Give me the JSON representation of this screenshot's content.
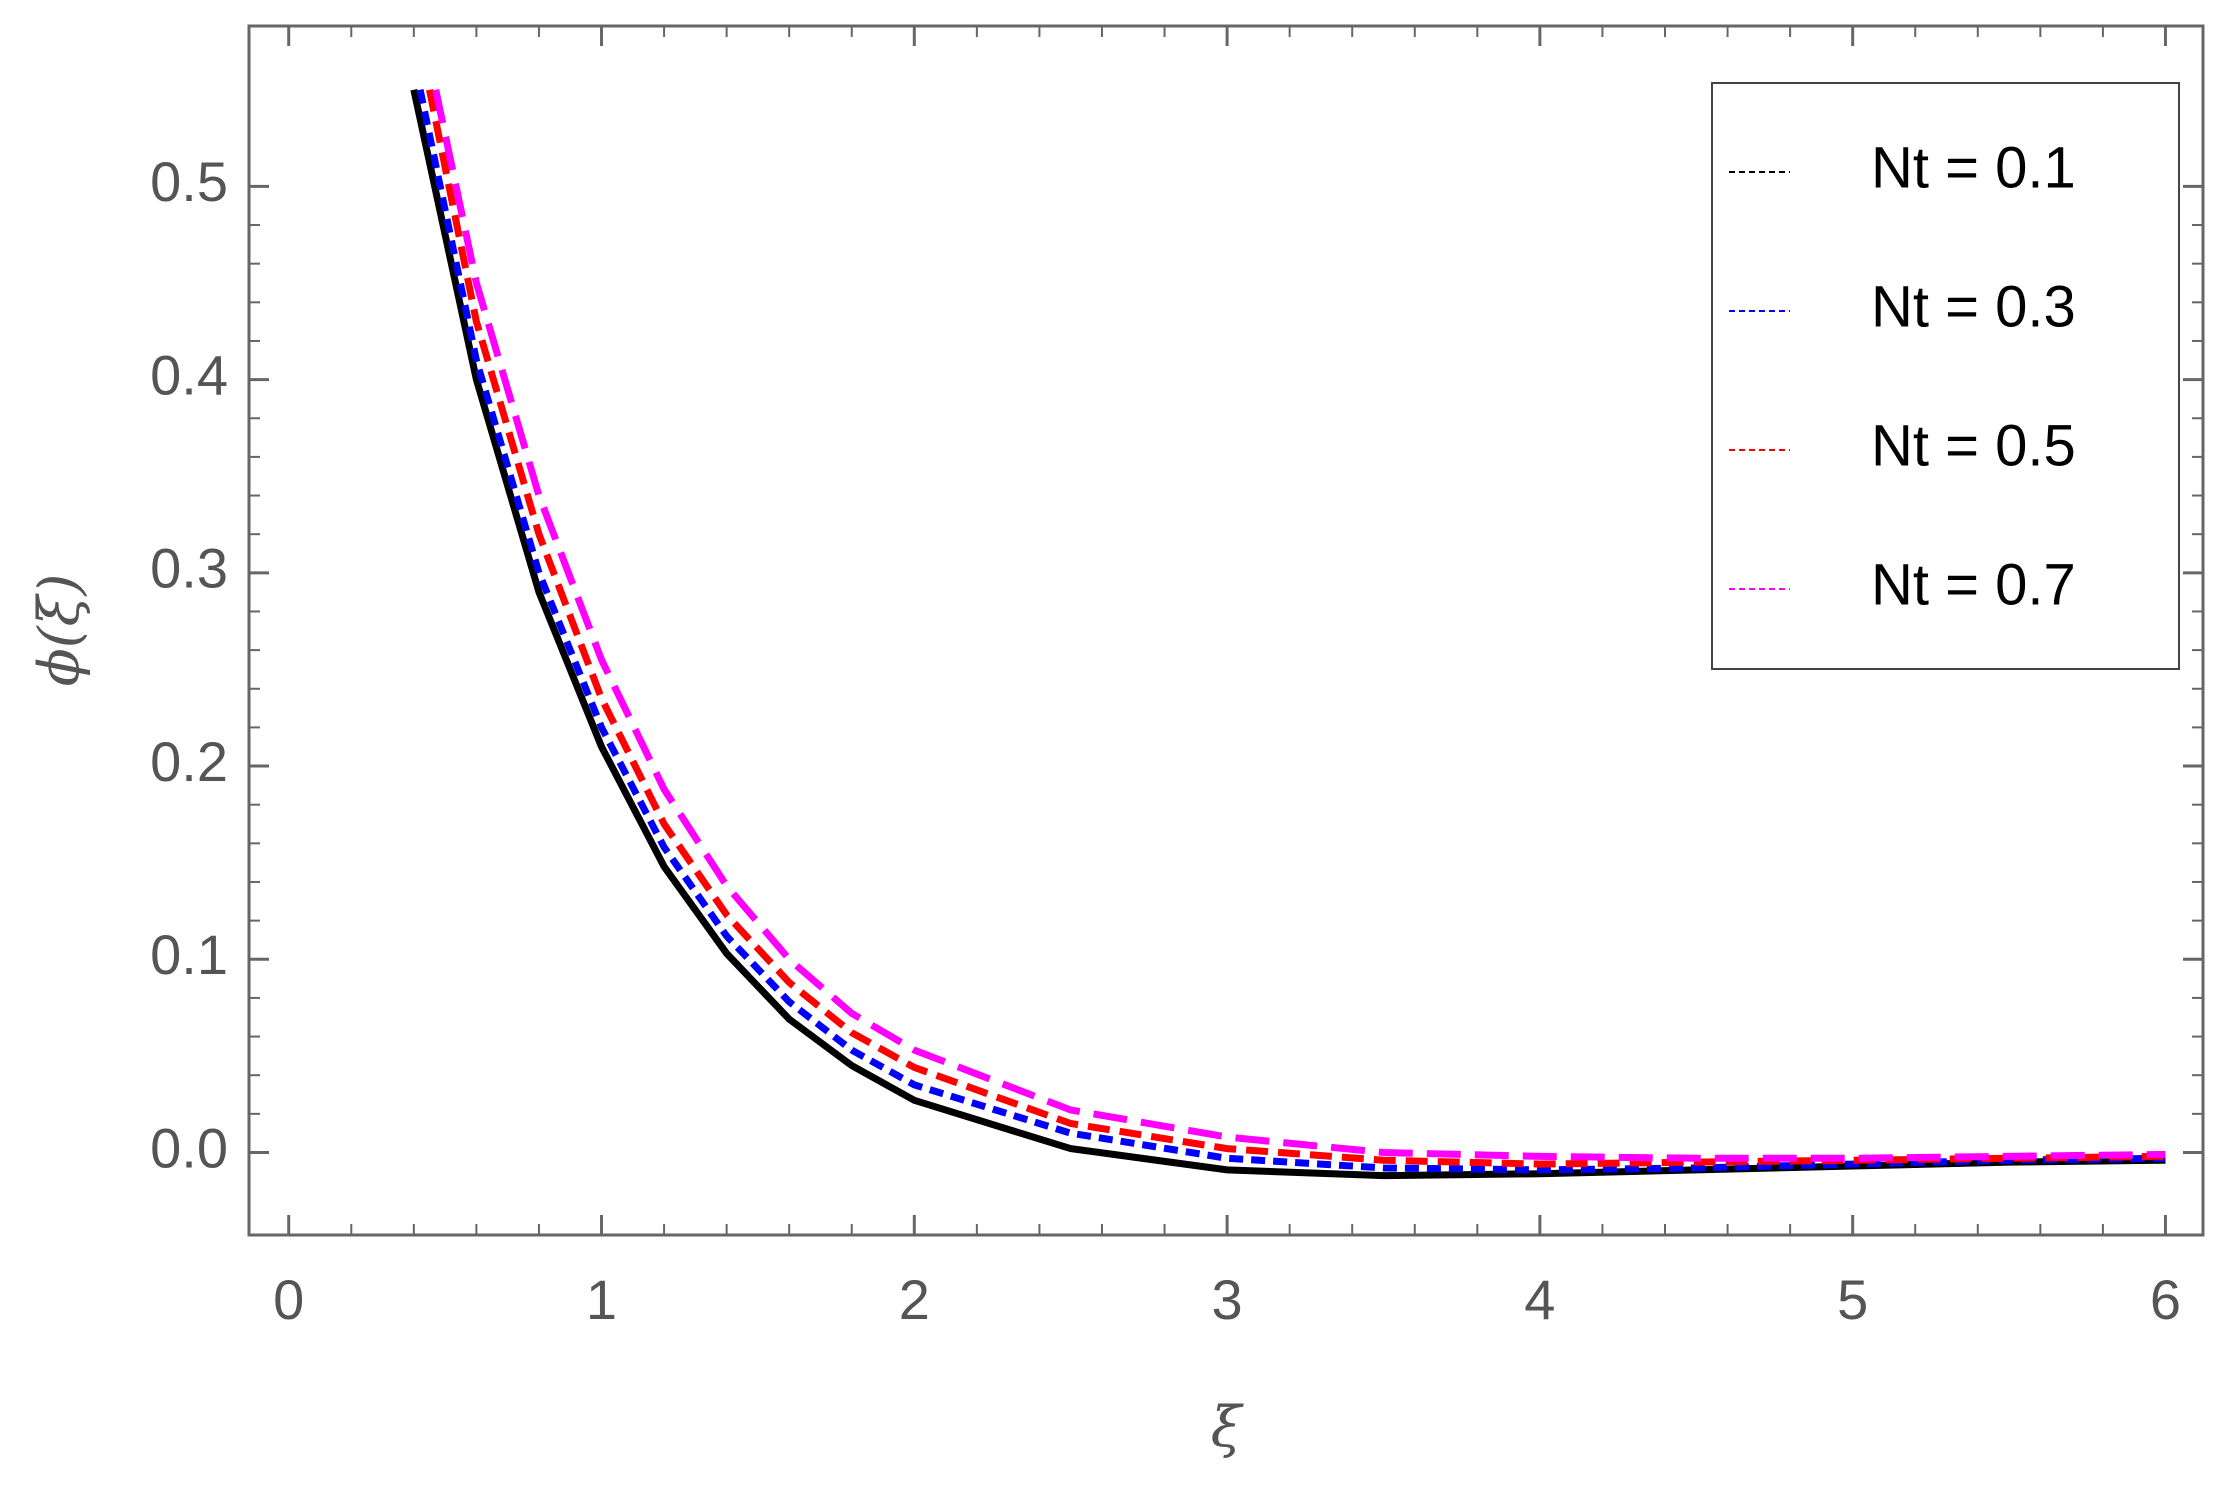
{
  "chart_data": {
    "type": "line",
    "xlabel": "ξ",
    "ylabel": "ϕ(ξ)",
    "xlim": [
      -0.127,
      6.12
    ],
    "ylim": [
      -0.0427,
      0.583
    ],
    "xticks": [
      0,
      1,
      2,
      3,
      4,
      5,
      6
    ],
    "yticks": [
      {
        "value": 0,
        "label": "0.0"
      },
      0.1,
      0.2,
      0.3,
      0.4,
      0.5
    ],
    "legend": "upper right",
    "series": [
      {
        "name": "Nt = 0.1",
        "color": "#000000",
        "x": [
          0.4,
          0.6,
          0.8,
          1.0,
          1.2,
          1.4,
          1.6,
          1.8,
          2.0,
          2.5,
          3.0,
          3.5,
          4.0,
          4.5,
          5.0,
          5.5,
          6.0
        ],
        "values": [
          0.55,
          0.4,
          0.29,
          0.21,
          0.148,
          0.103,
          0.069,
          0.045,
          0.027,
          0.002,
          -0.009,
          -0.012,
          -0.011,
          -0.009,
          -0.007,
          -0.005,
          -0.004
        ]
      },
      {
        "name": "Nt = 0.3",
        "color": "#0000ff",
        "x": [
          0.42,
          0.6,
          0.8,
          1.0,
          1.2,
          1.4,
          1.6,
          1.8,
          2.0,
          2.5,
          3.0,
          3.5,
          4.0,
          4.5,
          5.0,
          5.5,
          6.0
        ],
        "values": [
          0.55,
          0.41,
          0.3,
          0.22,
          0.158,
          0.112,
          0.078,
          0.053,
          0.035,
          0.01,
          -0.003,
          -0.008,
          -0.009,
          -0.008,
          -0.006,
          -0.004,
          -0.003
        ]
      },
      {
        "name": "Nt = 0.5",
        "color": "#ff0000",
        "x": [
          0.45,
          0.6,
          0.8,
          1.0,
          1.2,
          1.4,
          1.6,
          1.8,
          2.0,
          2.5,
          3.0,
          3.5,
          4.0,
          4.5,
          5.0,
          5.5,
          6.0
        ],
        "values": [
          0.55,
          0.43,
          0.32,
          0.235,
          0.17,
          0.123,
          0.088,
          0.062,
          0.044,
          0.015,
          0.002,
          -0.004,
          -0.006,
          -0.005,
          -0.004,
          -0.003,
          -0.002
        ]
      },
      {
        "name": "Nt = 0.7",
        "color": "#ff00ff",
        "x": [
          0.47,
          0.6,
          0.8,
          1.0,
          1.2,
          1.4,
          1.6,
          1.8,
          2.0,
          2.5,
          3.0,
          3.5,
          4.0,
          4.5,
          5.0,
          5.5,
          6.0
        ],
        "values": [
          0.55,
          0.45,
          0.34,
          0.255,
          0.188,
          0.138,
          0.1,
          0.072,
          0.053,
          0.022,
          0.008,
          0.0,
          -0.002,
          -0.003,
          -0.003,
          -0.002,
          -0.001
        ]
      }
    ]
  }
}
